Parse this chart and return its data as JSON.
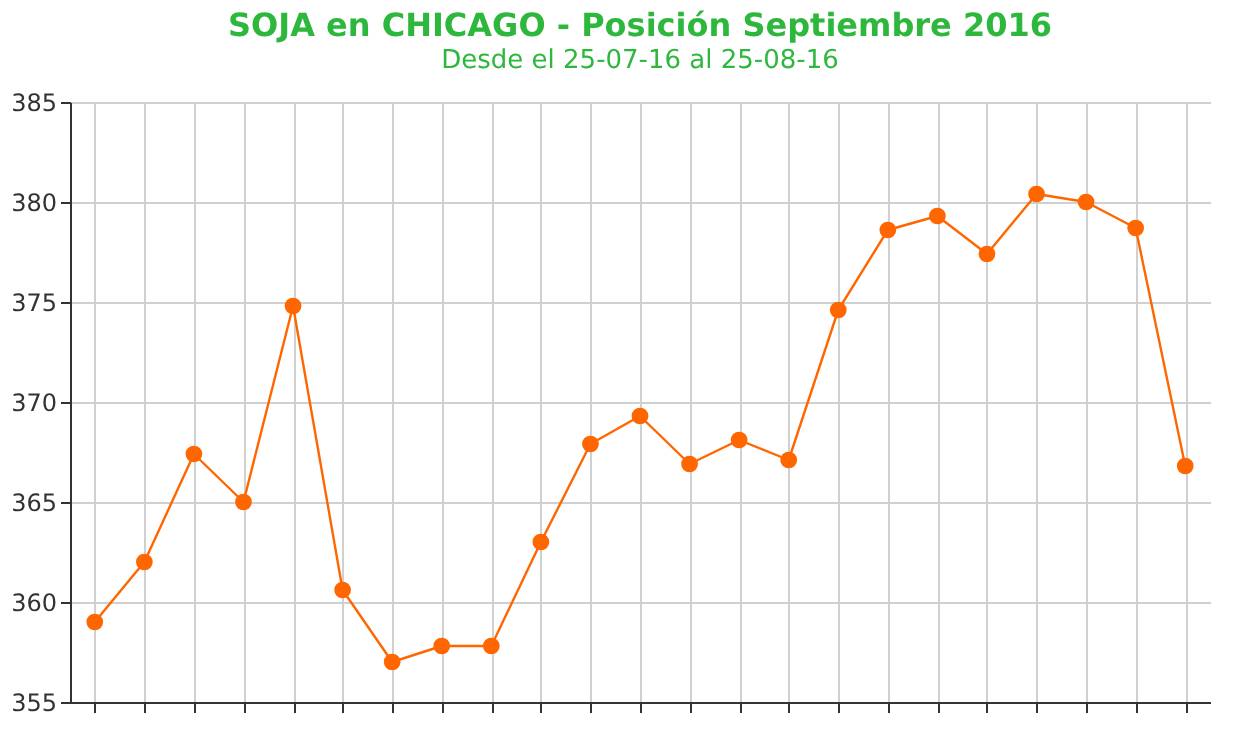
{
  "chart_data": {
    "type": "line",
    "title": "SOJA en CHICAGO - Posición Septiembre 2016",
    "subtitle": "Desde el 25-07-16 al 25-08-16",
    "categories": [
      null,
      null,
      null,
      null,
      null,
      null,
      null,
      null,
      null,
      null,
      null,
      null,
      null,
      null,
      null,
      null,
      null,
      null,
      null,
      null,
      null,
      null,
      null
    ],
    "series": [
      {
        "color": "#ff6600",
        "values": [
          359,
          362,
          367.4,
          365,
          374.8,
          360.6,
          357,
          357.8,
          357.8,
          363,
          367.9,
          369.3,
          366.9,
          368.1,
          367.1,
          374.6,
          378.6,
          379.3,
          377.4,
          380.4,
          380,
          378.7,
          366.8
        ]
      }
    ],
    "ylim": [
      355,
      385
    ],
    "yticks": [
      355,
      360,
      365,
      370,
      375,
      380,
      385
    ],
    "grid": true,
    "marker": "circle",
    "legend": false
  }
}
